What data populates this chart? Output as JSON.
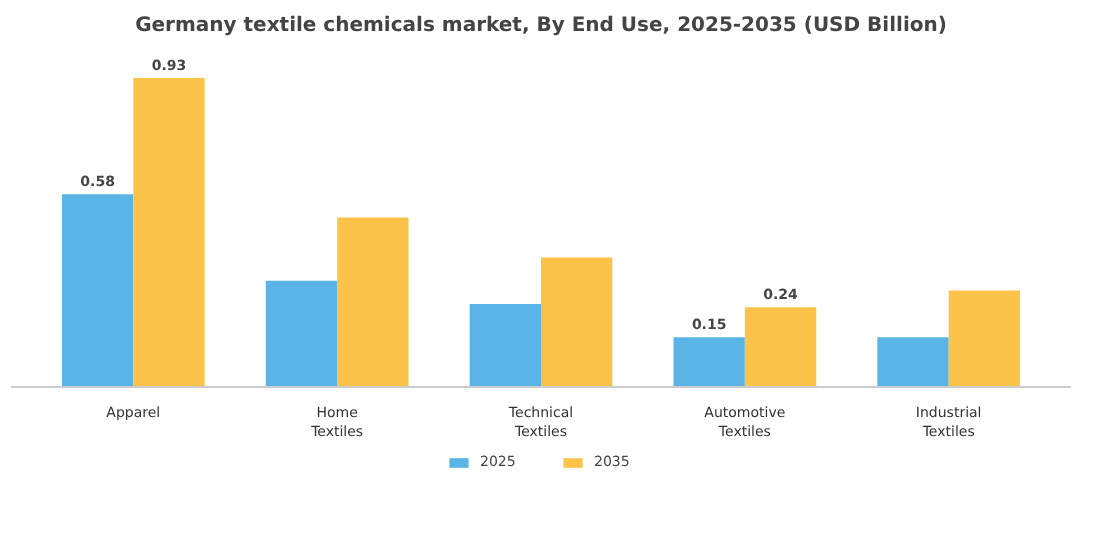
{
  "chart_data": {
    "type": "bar",
    "title": "Germany textile chemicals market, By End Use, 2025-2035 (USD Billion)",
    "categories": [
      "Apparel",
      "Home Textiles",
      "Technical Textiles",
      "Automotive Textiles",
      "Industrial Textiles"
    ],
    "series": [
      {
        "name": "2025",
        "color": "#5ab4e5",
        "values": [
          0.58,
          0.32,
          0.25,
          0.15,
          0.15
        ],
        "value_labels": [
          "0.58",
          null,
          null,
          "0.15",
          null
        ]
      },
      {
        "name": "2035",
        "color": "#fbc34a",
        "values": [
          0.93,
          0.51,
          0.39,
          0.24,
          0.29
        ],
        "value_labels": [
          "0.93",
          null,
          null,
          "0.24",
          null
        ]
      }
    ],
    "legend": "bottom"
  }
}
